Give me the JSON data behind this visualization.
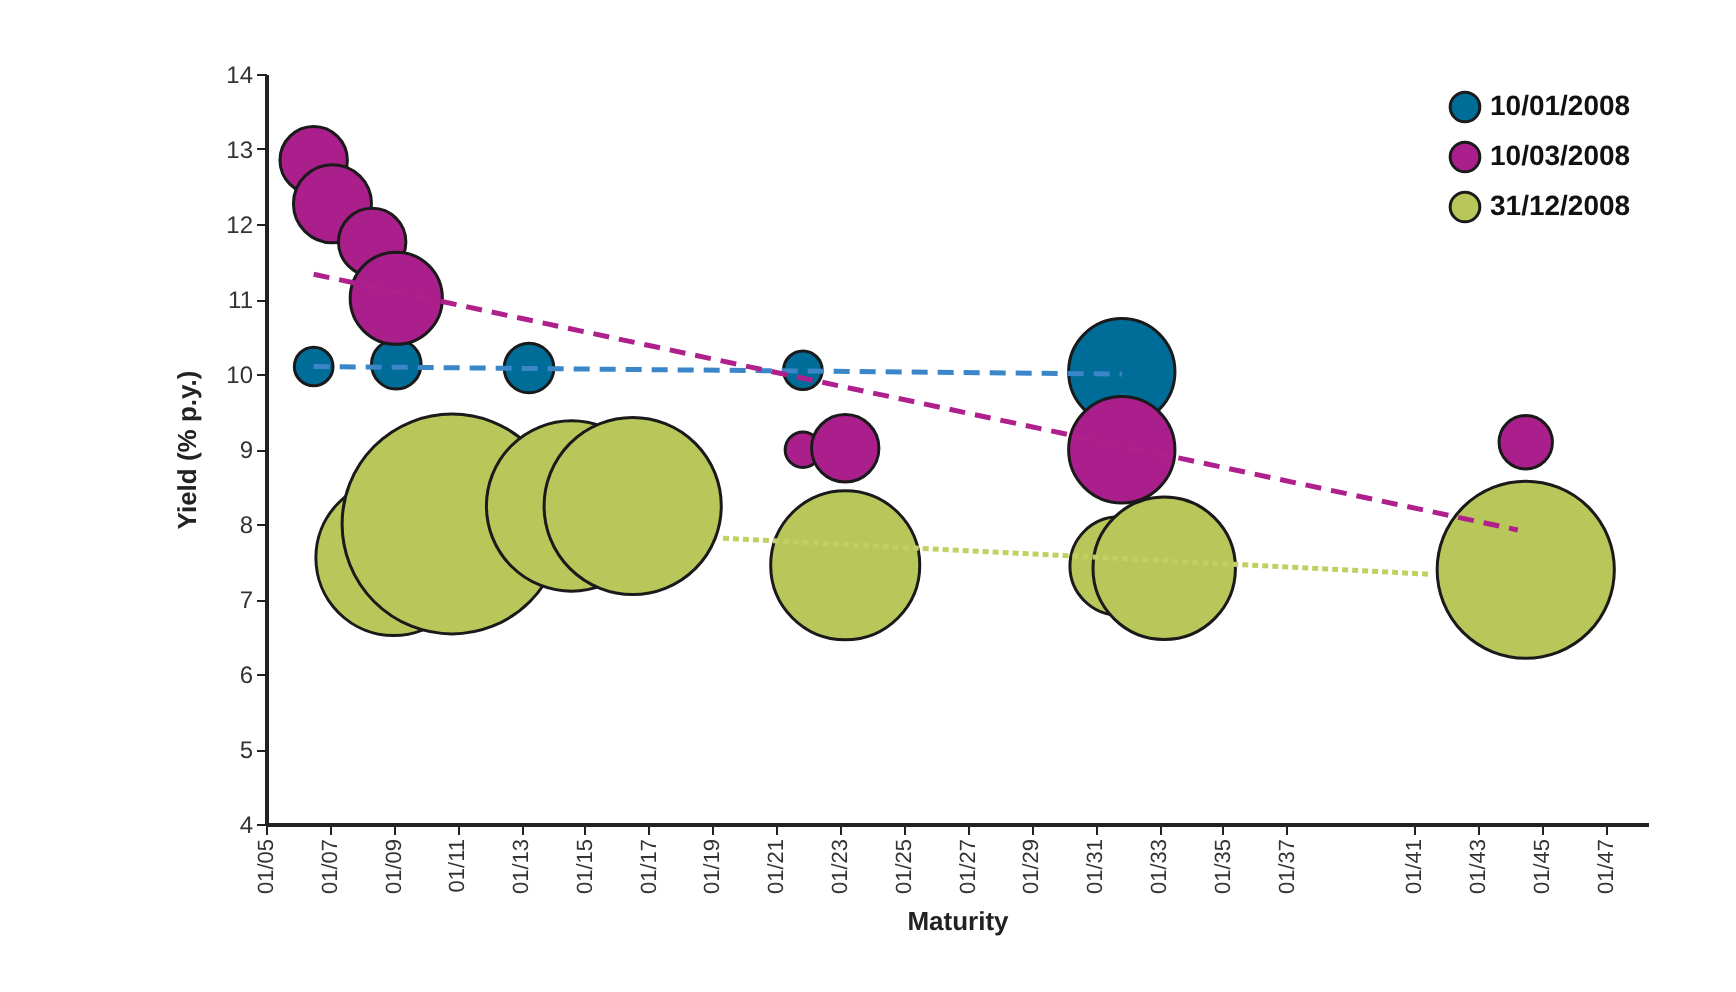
{
  "chart_data": {
    "type": "bubble",
    "xlabel": "Maturity",
    "ylabel": "Yield (% p.y.)",
    "legend": "top right",
    "marker": "circle",
    "xlim": [
      "2005-01",
      "2048-05"
    ],
    "xticks": [
      {
        "value": "2005-01",
        "label": "01/05"
      },
      {
        "value": "2007-01",
        "label": "01/07"
      },
      {
        "value": "2009-01",
        "label": "01/09"
      },
      {
        "value": "2011-01",
        "label": "01/11"
      },
      {
        "value": "2013-01",
        "label": "01/13"
      },
      {
        "value": "2015-01",
        "label": "01/15"
      },
      {
        "value": "2017-01",
        "label": "01/17"
      },
      {
        "value": "2019-01",
        "label": "01/19"
      },
      {
        "value": "2021-01",
        "label": "01/21"
      },
      {
        "value": "2023-01",
        "label": "01/23"
      },
      {
        "value": "2025-01",
        "label": "01/25"
      },
      {
        "value": "2027-01",
        "label": "01/27"
      },
      {
        "value": "2029-01",
        "label": "01/29"
      },
      {
        "value": "2031-01",
        "label": "01/31"
      },
      {
        "value": "2033-01",
        "label": "01/33"
      },
      {
        "value": "2035-01",
        "label": "01/35"
      },
      {
        "value": "2037-01",
        "label": "01/37"
      },
      {
        "value": "2041-01",
        "label": "01/41"
      },
      {
        "value": "2043-01",
        "label": "01/43"
      },
      {
        "value": "2045-01",
        "label": "01/45"
      },
      {
        "value": "2047-01",
        "label": "01/47"
      }
    ],
    "ylim": [
      4,
      14
    ],
    "yticks": [
      4,
      5,
      6,
      7,
      8,
      9,
      10,
      11,
      12,
      13,
      14
    ],
    "series": [
      {
        "name": "10/01/2008",
        "color": "#006d99",
        "x": [
          "2006-07",
          "2009-02",
          "2013-04",
          "2021-11",
          "2031-11"
        ],
        "values": [
          10.1,
          10.13,
          10.08,
          10.05,
          10.03
        ],
        "sizes": [
          0.031,
          0.051,
          0.051,
          0.031,
          0.234
        ]
      },
      {
        "name": "10/03/2008",
        "color": "#aa1f8c",
        "x": [
          "2006-07",
          "2007-02",
          "2008-05",
          "2009-02",
          "2021-11",
          "2023-03",
          "2031-11",
          "2044-07"
        ],
        "values": [
          12.85,
          12.27,
          11.76,
          11.01,
          8.99,
          9.01,
          8.99,
          9.09
        ],
        "sizes": [
          0.094,
          0.126,
          0.094,
          0.176,
          0.026,
          0.094,
          0.234,
          0.059
        ]
      },
      {
        "name": "31/12/2008",
        "color": "#b8c65a",
        "x": [
          "2009-01",
          "2010-11",
          "2014-08",
          "2016-07",
          "2023-03",
          "2031-10",
          "2033-03",
          "2044-07"
        ],
        "values": [
          7.55,
          8.0,
          8.24,
          8.24,
          7.45,
          7.44,
          7.41,
          7.39
        ],
        "sizes": [
          0.5,
          1,
          0.6,
          0.65,
          0.46,
          0.2,
          0.42,
          0.65
        ]
      },
      {
        "type": "line",
        "marker": "none",
        "color": "#3a86c8",
        "line_style": "dashed",
        "x": [
          "2006-07",
          "2031-11"
        ],
        "values": [
          10.1,
          10.0
        ]
      },
      {
        "type": "line",
        "marker": "none",
        "color": "#b0208c",
        "line_style": "dashed",
        "x": [
          "2006-07",
          "2044-04"
        ],
        "values": [
          11.33,
          7.92
        ]
      },
      {
        "type": "line",
        "marker": "none",
        "color": "#c2d063",
        "line_style": "dotted",
        "x": [
          "2019-05",
          "2041-07"
        ],
        "values": [
          7.81,
          7.33
        ]
      }
    ]
  }
}
